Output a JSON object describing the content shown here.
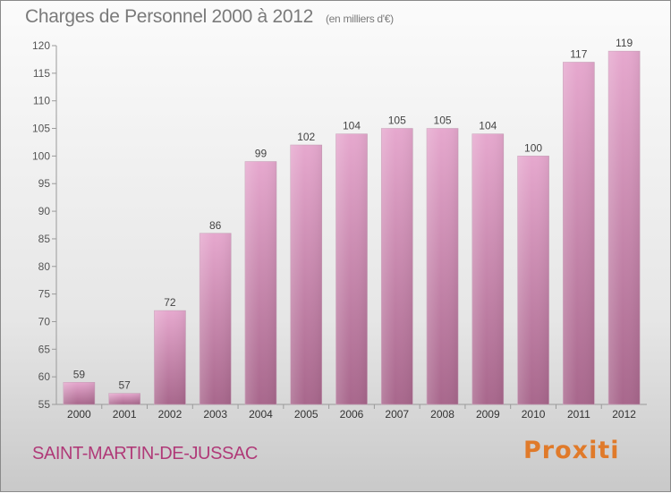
{
  "header": {
    "title": "Charges de Personnel 2000 à 2012",
    "subtitle": "(en milliers d'€)"
  },
  "footer": {
    "commune": "SAINT-MARTIN-DE-JUSSAC",
    "brand": "Proxiti"
  },
  "colors": {
    "bar_top": "#e6a8ce",
    "bar_bottom": "#a8678c",
    "bar_edge": "#c8a0b8",
    "commune_text": "#b03a78"
  },
  "chart_data": {
    "type": "bar",
    "categories": [
      "2000",
      "2001",
      "2002",
      "2003",
      "2004",
      "2005",
      "2006",
      "2007",
      "2008",
      "2009",
      "2010",
      "2011",
      "2012"
    ],
    "values": [
      59,
      57,
      72,
      86,
      99,
      102,
      104,
      105,
      105,
      104,
      100,
      117,
      119
    ],
    "title": "Charges de Personnel 2000 à 2012",
    "subtitle": "(en milliers d'€)",
    "xlabel": "",
    "ylabel": "",
    "ylim": [
      55,
      120
    ],
    "yticks": [
      55,
      60,
      65,
      70,
      75,
      80,
      85,
      90,
      95,
      100,
      105,
      110,
      115,
      120
    ],
    "grid": false,
    "data_labels": true
  }
}
